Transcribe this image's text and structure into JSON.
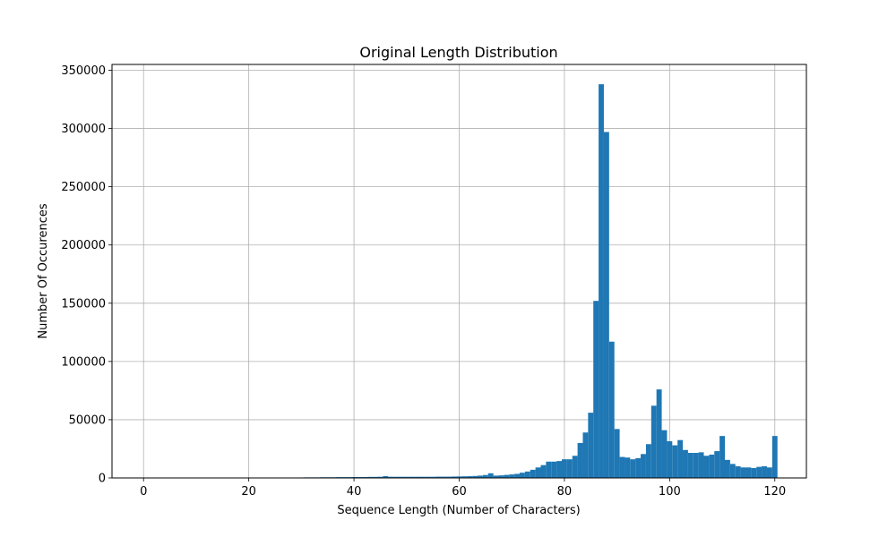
{
  "chart_data": {
    "type": "bar",
    "title": "Original Length Distribution",
    "xlabel": "Sequence Length (Number of Characters)",
    "ylabel": "Number Of Occurences",
    "xlim": [
      -6,
      126
    ],
    "ylim": [
      0,
      355000
    ],
    "xticks": [
      0,
      20,
      40,
      60,
      80,
      100,
      120
    ],
    "yticks": [
      0,
      50000,
      100000,
      150000,
      200000,
      250000,
      300000,
      350000
    ],
    "xtick_labels": [
      "0",
      "20",
      "40",
      "60",
      "80",
      "100",
      "120"
    ],
    "ytick_labels": [
      "0",
      "50000",
      "100000",
      "150000",
      "200000",
      "250000",
      "300000",
      "350000"
    ],
    "grid": true,
    "color": "#1f77b4",
    "bin_width": 1,
    "bins": [
      {
        "x": 30,
        "y": 400
      },
      {
        "x": 31,
        "y": 500
      },
      {
        "x": 32,
        "y": 500
      },
      {
        "x": 33,
        "y": 500
      },
      {
        "x": 34,
        "y": 600
      },
      {
        "x": 35,
        "y": 600
      },
      {
        "x": 36,
        "y": 600
      },
      {
        "x": 37,
        "y": 700
      },
      {
        "x": 38,
        "y": 700
      },
      {
        "x": 39,
        "y": 700
      },
      {
        "x": 40,
        "y": 800
      },
      {
        "x": 41,
        "y": 800
      },
      {
        "x": 42,
        "y": 800
      },
      {
        "x": 43,
        "y": 900
      },
      {
        "x": 44,
        "y": 900
      },
      {
        "x": 45,
        "y": 1000
      },
      {
        "x": 46,
        "y": 1600
      },
      {
        "x": 47,
        "y": 1000
      },
      {
        "x": 48,
        "y": 1000
      },
      {
        "x": 49,
        "y": 1000
      },
      {
        "x": 50,
        "y": 1000
      },
      {
        "x": 51,
        "y": 1000
      },
      {
        "x": 52,
        "y": 1000
      },
      {
        "x": 53,
        "y": 1000
      },
      {
        "x": 54,
        "y": 1000
      },
      {
        "x": 55,
        "y": 1000
      },
      {
        "x": 56,
        "y": 1100
      },
      {
        "x": 57,
        "y": 1100
      },
      {
        "x": 58,
        "y": 1100
      },
      {
        "x": 59,
        "y": 1200
      },
      {
        "x": 60,
        "y": 1300
      },
      {
        "x": 61,
        "y": 1400
      },
      {
        "x": 62,
        "y": 1500
      },
      {
        "x": 63,
        "y": 1700
      },
      {
        "x": 64,
        "y": 2000
      },
      {
        "x": 65,
        "y": 2500
      },
      {
        "x": 66,
        "y": 4000
      },
      {
        "x": 67,
        "y": 2000
      },
      {
        "x": 68,
        "y": 2200
      },
      {
        "x": 69,
        "y": 2600
      },
      {
        "x": 70,
        "y": 3000
      },
      {
        "x": 71,
        "y": 3500
      },
      {
        "x": 72,
        "y": 4500
      },
      {
        "x": 73,
        "y": 5500
      },
      {
        "x": 74,
        "y": 7000
      },
      {
        "x": 75,
        "y": 9000
      },
      {
        "x": 76,
        "y": 11000
      },
      {
        "x": 77,
        "y": 14000
      },
      {
        "x": 78,
        "y": 14000
      },
      {
        "x": 79,
        "y": 14500
      },
      {
        "x": 80,
        "y": 16000
      },
      {
        "x": 81,
        "y": 16000
      },
      {
        "x": 82,
        "y": 19000
      },
      {
        "x": 83,
        "y": 30000
      },
      {
        "x": 84,
        "y": 39000
      },
      {
        "x": 85,
        "y": 56000
      },
      {
        "x": 86,
        "y": 152000
      },
      {
        "x": 87,
        "y": 338000
      },
      {
        "x": 88,
        "y": 297000
      },
      {
        "x": 89,
        "y": 117000
      },
      {
        "x": 90,
        "y": 42000
      },
      {
        "x": 91,
        "y": 18000
      },
      {
        "x": 92,
        "y": 17500
      },
      {
        "x": 93,
        "y": 16000
      },
      {
        "x": 94,
        "y": 17000
      },
      {
        "x": 95,
        "y": 20500
      },
      {
        "x": 96,
        "y": 29000
      },
      {
        "x": 97,
        "y": 62000
      },
      {
        "x": 98,
        "y": 76000
      },
      {
        "x": 99,
        "y": 41000
      },
      {
        "x": 100,
        "y": 31500
      },
      {
        "x": 101,
        "y": 28000
      },
      {
        "x": 102,
        "y": 32500
      },
      {
        "x": 103,
        "y": 24000
      },
      {
        "x": 104,
        "y": 21500
      },
      {
        "x": 105,
        "y": 21500
      },
      {
        "x": 106,
        "y": 22000
      },
      {
        "x": 107,
        "y": 19000
      },
      {
        "x": 108,
        "y": 20000
      },
      {
        "x": 109,
        "y": 23000
      },
      {
        "x": 110,
        "y": 36000
      },
      {
        "x": 111,
        "y": 15500
      },
      {
        "x": 112,
        "y": 12000
      },
      {
        "x": 113,
        "y": 10000
      },
      {
        "x": 114,
        "y": 9000
      },
      {
        "x": 115,
        "y": 9000
      },
      {
        "x": 116,
        "y": 8500
      },
      {
        "x": 117,
        "y": 9500
      },
      {
        "x": 118,
        "y": 10000
      },
      {
        "x": 119,
        "y": 9000
      },
      {
        "x": 120,
        "y": 36000
      }
    ]
  }
}
